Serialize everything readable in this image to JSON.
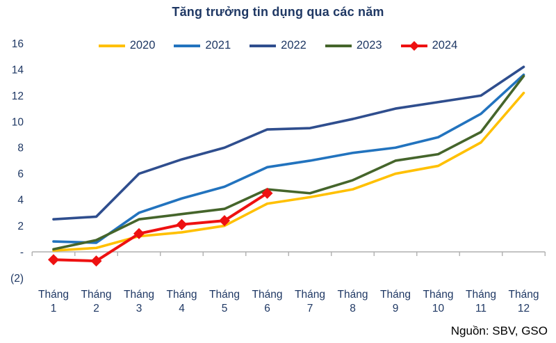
{
  "title": "Tăng trưởng tin dụng qua các năm",
  "source": {
    "label": "Nguồn: SBV, GSO"
  },
  "colors": {
    "title_text": "#1F3864",
    "axis_label_text": "#1F3864",
    "axis_line": "#AFAFAF",
    "background": "#FFFFFF",
    "source_text": "#000000"
  },
  "chart_data": {
    "type": "line",
    "title": "Tăng trưởng tin dụng qua các năm",
    "xlabel": "",
    "ylabel": "",
    "grid": false,
    "legend_position": "top",
    "x_axis": {
      "prefix": "Tháng",
      "months": [
        "1",
        "2",
        "3",
        "4",
        "5",
        "6",
        "7",
        "8",
        "9",
        "10",
        "11",
        "12"
      ]
    },
    "categories": [
      "Tháng 1",
      "Tháng 2",
      "Tháng 3",
      "Tháng 4",
      "Tháng 5",
      "Tháng 6",
      "Tháng 7",
      "Tháng 8",
      "Tháng 9",
      "Tháng 10",
      "Tháng 11",
      "Tháng 12"
    ],
    "y_axis": {
      "min": -2,
      "max": 16,
      "step": 2,
      "tick_values": [
        16,
        14,
        12,
        10,
        8,
        6,
        4,
        2,
        0,
        -2
      ],
      "tick_labels": [
        "16",
        "14",
        "12",
        "10",
        "8",
        "6",
        "4",
        "2",
        "-",
        "(2)"
      ]
    },
    "series": [
      {
        "name": "2020",
        "color": "#FFC000",
        "marker": "none",
        "values": [
          0.1,
          0.3,
          1.2,
          1.5,
          2.0,
          3.7,
          4.2,
          4.8,
          6.0,
          6.6,
          8.4,
          12.2
        ]
      },
      {
        "name": "2021",
        "color": "#2273BE",
        "marker": "none",
        "values": [
          0.8,
          0.7,
          3.0,
          4.1,
          5.0,
          6.5,
          7.0,
          7.6,
          8.0,
          8.8,
          10.6,
          13.6
        ]
      },
      {
        "name": "2022",
        "color": "#2F4E8E",
        "marker": "none",
        "values": [
          2.5,
          2.7,
          6.0,
          7.1,
          8.0,
          9.4,
          9.5,
          10.2,
          11.0,
          11.5,
          12.0,
          14.2
        ]
      },
      {
        "name": "2023",
        "color": "#45652B",
        "marker": "none",
        "values": [
          0.2,
          0.9,
          2.5,
          2.9,
          3.3,
          4.8,
          4.5,
          5.5,
          7.0,
          7.5,
          9.2,
          13.5
        ]
      },
      {
        "name": "2024",
        "color": "#EE1111",
        "marker": "diamond",
        "values": [
          -0.6,
          -0.7,
          1.4,
          2.1,
          2.4,
          4.5
        ]
      }
    ]
  }
}
